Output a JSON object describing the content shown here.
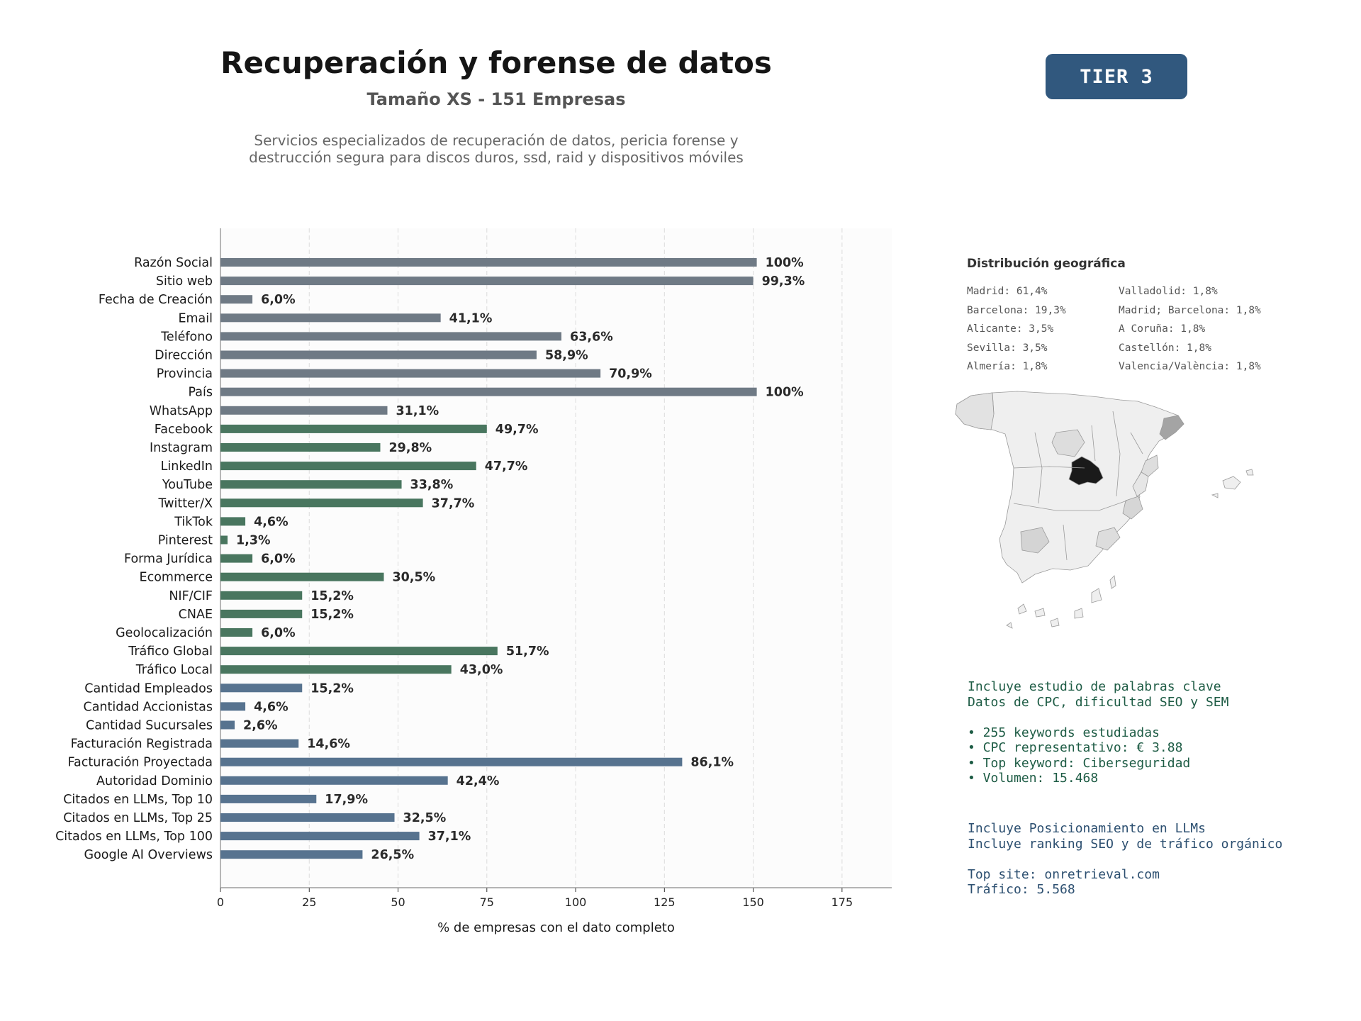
{
  "header": {
    "title": "Recuperación y forense de datos",
    "subtitle": "Tamaño XS - 151 Empresas",
    "description_line1": "Servicios especializados de recuperación de datos, pericia forense y",
    "description_line2": "destrucción segura para discos duros, ssd, raid y dispositivos móviles",
    "tier": "TIER 3"
  },
  "chart_data": {
    "type": "bar",
    "orientation": "horizontal",
    "xlabel": "% de empresas con el dato completo",
    "xlim": [
      0,
      189
    ],
    "xticks": [
      0,
      25,
      50,
      75,
      100,
      125,
      150,
      175
    ],
    "grid": "vertical dashed",
    "colors": {
      "basic": "#6f7a85",
      "digital": "#49765f",
      "business": "#57738f"
    },
    "categories": [
      "Razón Social",
      "Sitio web",
      "Fecha de Creación",
      "Email",
      "Teléfono",
      "Dirección",
      "Provincia",
      "País",
      "WhatsApp",
      "Facebook",
      "Instagram",
      "LinkedIn",
      "YouTube",
      "Twitter/X",
      "TikTok",
      "Pinterest",
      "Forma Jurídica",
      "Ecommerce",
      "NIF/CIF",
      "CNAE",
      "Geolocalización",
      "Tráfico Global",
      "Tráfico Local",
      "Cantidad Empleados",
      "Cantidad Accionistas",
      "Cantidad Sucursales",
      "Facturación Registrada",
      "Facturación Proyectada",
      "Autoridad Dominio",
      "Citados en LLMs, Top 10",
      "Citados en LLMs, Top 25",
      "Citados en LLMs, Top 100",
      "Google AI Overviews"
    ],
    "values": [
      151,
      150,
      9,
      62,
      96,
      89,
      107,
      151,
      47,
      75,
      45,
      72,
      51,
      57,
      7,
      2,
      9,
      46,
      23,
      23,
      9,
      78,
      65,
      23,
      7,
      4,
      22,
      130,
      64,
      27,
      49,
      56,
      40
    ],
    "labels": [
      "100%",
      "99,3%",
      "6,0%",
      "41,1%",
      "63,6%",
      "58,9%",
      "70,9%",
      "100%",
      "31,1%",
      "49,7%",
      "29,8%",
      "47,7%",
      "33,8%",
      "37,7%",
      "4,6%",
      "1,3%",
      "6,0%",
      "30,5%",
      "15,2%",
      "15,2%",
      "6,0%",
      "51,7%",
      "43,0%",
      "15,2%",
      "4,6%",
      "2,6%",
      "14,6%",
      "86,1%",
      "42,4%",
      "17,9%",
      "32,5%",
      "37,1%",
      "26,5%"
    ],
    "groups": [
      "basic",
      "basic",
      "basic",
      "basic",
      "basic",
      "basic",
      "basic",
      "basic",
      "basic",
      "digital",
      "digital",
      "digital",
      "digital",
      "digital",
      "digital",
      "digital",
      "digital",
      "digital",
      "digital",
      "digital",
      "digital",
      "digital",
      "digital",
      "business",
      "business",
      "business",
      "business",
      "business",
      "business",
      "business",
      "business",
      "business",
      "business"
    ]
  },
  "geo": {
    "title": "Distribución geográfica",
    "items": [
      "Madrid: 61,4%",
      "Valladolid: 1,8%",
      "Barcelona: 19,3%",
      "Madrid; Barcelona: 1,8%",
      "Alicante: 3,5%",
      "A Coruña: 1,8%",
      "Sevilla: 3,5%",
      "Castellón: 1,8%",
      "Almería: 1,8%",
      "Valencia/València: 1,8%"
    ]
  },
  "keywords": {
    "line1": "Incluye estudio de palabras clave",
    "line2": "Datos de CPC, dificultad SEO y SEM",
    "bullet1": "• 255 keywords estudiadas",
    "bullet2": "• CPC representativo: € 3.88",
    "bullet3": "• Top keyword: Ciberseguridad",
    "bullet4": "• Volumen: 15.468"
  },
  "llm": {
    "line1": "Incluye Posicionamiento en LLMs",
    "line2": "Incluye ranking SEO y de tráfico orgánico",
    "top_site": "Top site: onretrieval.com",
    "traffic": "Tráfico: 5.568"
  }
}
